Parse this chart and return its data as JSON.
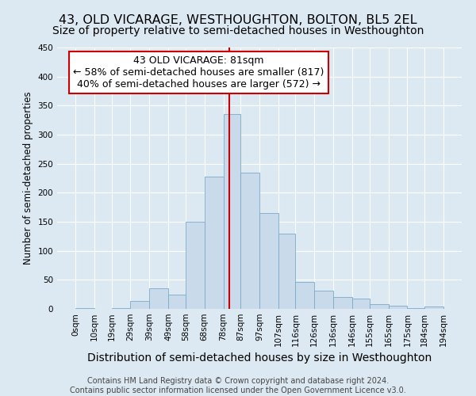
{
  "title": "43, OLD VICARAGE, WESTHOUGHTON, BOLTON, BL5 2EL",
  "subtitle": "Size of property relative to semi-detached houses in Westhoughton",
  "xlabel": "Distribution of semi-detached houses by size in Westhoughton",
  "ylabel": "Number of semi-detached properties",
  "footer_line1": "Contains HM Land Registry data © Crown copyright and database right 2024.",
  "footer_line2": "Contains public sector information licensed under the Open Government Licence v3.0.",
  "annotation_title": "43 OLD VICARAGE: 81sqm",
  "annotation_line1": "← 58% of semi-detached houses are smaller (817)",
  "annotation_line2": "40% of semi-detached houses are larger (572) →",
  "bar_color": "#c9daea",
  "bar_edge_color": "#7aaac8",
  "vline_color": "#cc0000",
  "vline_x": 81,
  "bin_edges": [
    0,
    10,
    19,
    29,
    39,
    49,
    58,
    68,
    78,
    87,
    97,
    107,
    116,
    126,
    136,
    146,
    155,
    165,
    175,
    184,
    194
  ],
  "bin_labels": [
    "0sqm",
    "10sqm",
    "19sqm",
    "29sqm",
    "39sqm",
    "49sqm",
    "58sqm",
    "68sqm",
    "78sqm",
    "87sqm",
    "97sqm",
    "107sqm",
    "116sqm",
    "126sqm",
    "136sqm",
    "146sqm",
    "155sqm",
    "165sqm",
    "175sqm",
    "184sqm",
    "194sqm"
  ],
  "bar_heights": [
    1,
    0,
    2,
    14,
    36,
    25,
    150,
    228,
    336,
    235,
    165,
    130,
    47,
    31,
    20,
    18,
    8,
    5,
    2,
    4
  ],
  "ylim": [
    0,
    450
  ],
  "yticks": [
    0,
    50,
    100,
    150,
    200,
    250,
    300,
    350,
    400,
    450
  ],
  "background_color": "#dce9f2",
  "plot_bg_color": "#dce9f2",
  "title_fontsize": 11.5,
  "subtitle_fontsize": 10,
  "xlabel_fontsize": 10,
  "ylabel_fontsize": 8.5,
  "tick_fontsize": 7.5,
  "footer_fontsize": 7,
  "annotation_fontsize": 9,
  "annotation_box_color": "white",
  "annotation_box_edge": "#cc0000"
}
